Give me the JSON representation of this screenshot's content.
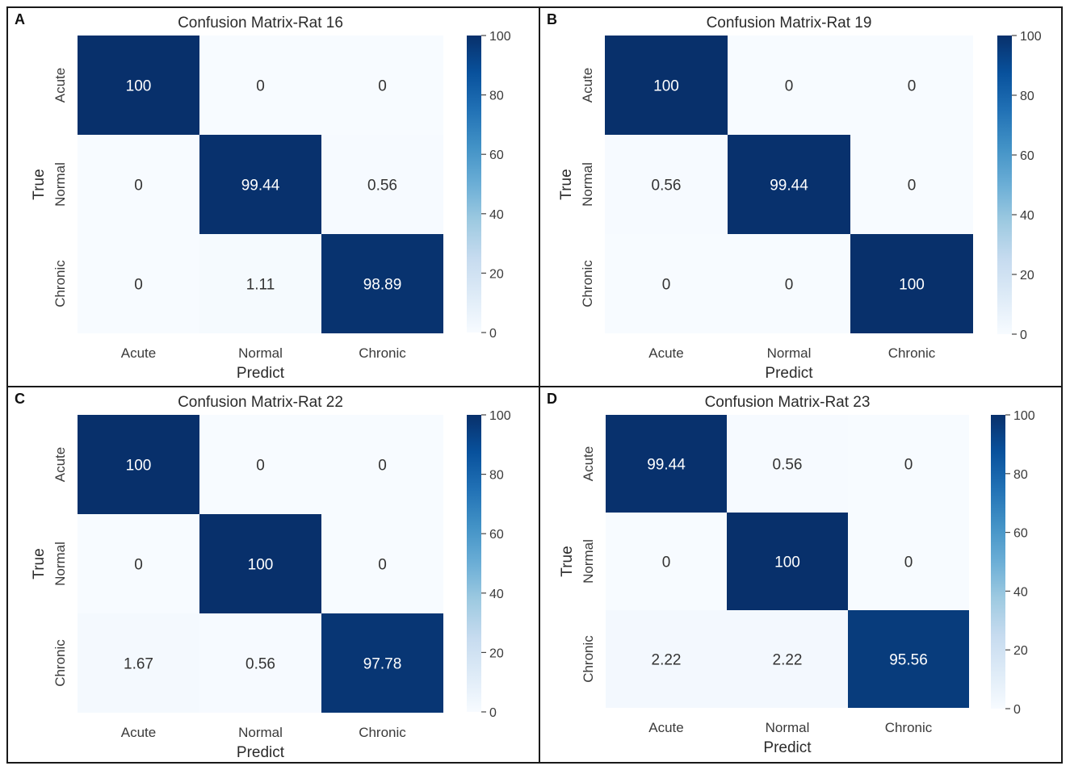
{
  "chart_data": [
    {
      "panel": "A",
      "type": "heatmap",
      "title": "Confusion Matrix-Rat 16",
      "xlabel": "Predict",
      "ylabel": "True",
      "x_categories": [
        "Acute",
        "Normal",
        "Chronic"
      ],
      "y_categories": [
        "Acute",
        "Normal",
        "Chronic"
      ],
      "cell_labels": [
        [
          "100",
          "0",
          "0"
        ],
        [
          "0",
          "99.44",
          "0.56"
        ],
        [
          "0",
          "1.11",
          "98.89"
        ]
      ],
      "values": [
        [
          100,
          0,
          0
        ],
        [
          0,
          99.44,
          0.56
        ],
        [
          0,
          1.11,
          98.89
        ]
      ],
      "colorbar": {
        "min": 0,
        "max": 100,
        "ticks": [
          "0",
          "20",
          "40",
          "60",
          "80",
          "100"
        ],
        "colormap": "Blues"
      }
    },
    {
      "panel": "B",
      "type": "heatmap",
      "title": "Confusion Matrix-Rat 19",
      "xlabel": "Predict",
      "ylabel": "True",
      "x_categories": [
        "Acute",
        "Normal",
        "Chronic"
      ],
      "y_categories": [
        "Acute",
        "Normal",
        "Chronic"
      ],
      "cell_labels": [
        [
          "100",
          "0",
          "0"
        ],
        [
          "0.56",
          "99.44",
          "0"
        ],
        [
          "0",
          "0",
          "100"
        ]
      ],
      "values": [
        [
          100,
          0,
          0
        ],
        [
          0.56,
          99.44,
          0
        ],
        [
          0,
          0,
          100
        ]
      ],
      "colorbar": {
        "min": 0,
        "max": 100,
        "ticks": [
          "0",
          "20",
          "40",
          "60",
          "80",
          "100"
        ],
        "colormap": "Blues"
      }
    },
    {
      "panel": "C",
      "type": "heatmap",
      "title": "Confusion Matrix-Rat 22",
      "xlabel": "Predict",
      "ylabel": "True",
      "x_categories": [
        "Acute",
        "Normal",
        "Chronic"
      ],
      "y_categories": [
        "Acute",
        "Normal",
        "Chronic"
      ],
      "cell_labels": [
        [
          "100",
          "0",
          "0"
        ],
        [
          "0",
          "100",
          "0"
        ],
        [
          "1.67",
          "0.56",
          "97.78"
        ]
      ],
      "values": [
        [
          100,
          0,
          0
        ],
        [
          0,
          100,
          0
        ],
        [
          1.67,
          0.56,
          97.78
        ]
      ],
      "colorbar": {
        "min": 0,
        "max": 100,
        "ticks": [
          "0",
          "20",
          "40",
          "60",
          "80",
          "100"
        ],
        "colormap": "Blues"
      }
    },
    {
      "panel": "D",
      "type": "heatmap",
      "title": "Confusion Matrix-Rat 23",
      "xlabel": "Predict",
      "ylabel": "True",
      "x_categories": [
        "Acute",
        "Normal",
        "Chronic"
      ],
      "y_categories": [
        "Acute",
        "Normal",
        "Chronic"
      ],
      "cell_labels": [
        [
          "99.44",
          "0.56",
          "0"
        ],
        [
          "0",
          "100",
          "0"
        ],
        [
          "2.22",
          "2.22",
          "95.56"
        ]
      ],
      "values": [
        [
          99.44,
          0.56,
          0
        ],
        [
          0,
          100,
          0
        ],
        [
          2.22,
          2.22,
          95.56
        ]
      ],
      "colorbar": {
        "min": 0,
        "max": 100,
        "ticks": [
          "0",
          "20",
          "40",
          "60",
          "80",
          "100"
        ],
        "colormap": "Blues"
      }
    }
  ],
  "colors": {
    "low": "#f7fbff",
    "high": "#08306b",
    "border": "#1a1a1a"
  }
}
